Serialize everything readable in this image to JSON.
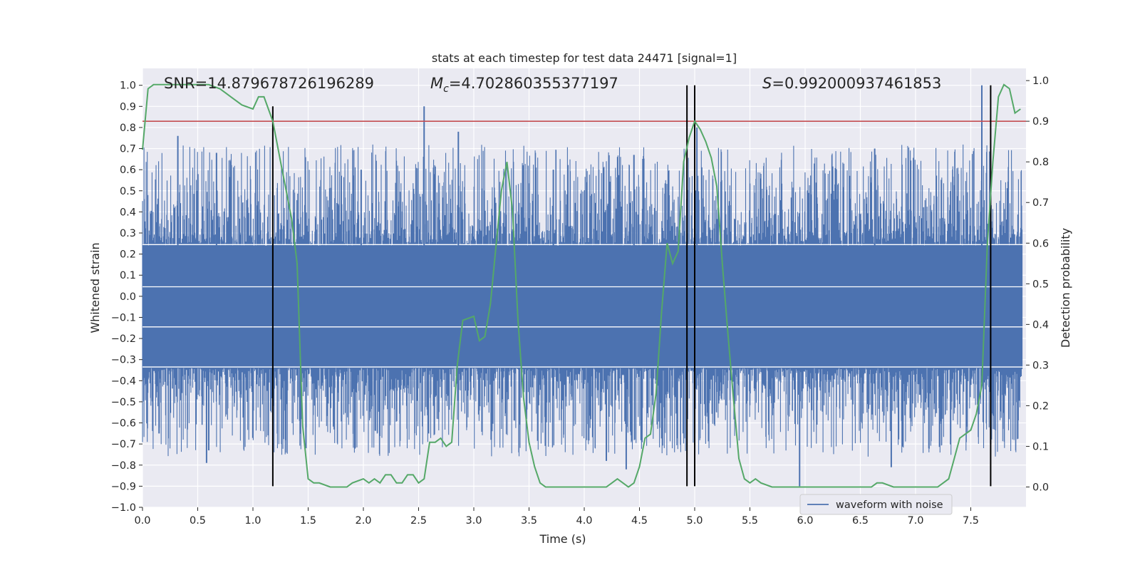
{
  "chart_data": {
    "type": "line",
    "title": "stats at each timestep for test data 24471 [signal=1]",
    "xlabel": "Time (s)",
    "ylabel": "Whitened strain",
    "y2label": "Detection probability",
    "xlim": [
      0.0,
      8.0
    ],
    "ylim": [
      -1.0,
      1.08
    ],
    "y2lim": [
      -0.05,
      1.03
    ],
    "xticks": [
      0.0,
      0.5,
      1.0,
      1.5,
      2.0,
      2.5,
      3.0,
      3.5,
      4.0,
      4.5,
      5.0,
      5.5,
      6.0,
      6.5,
      7.0,
      7.5
    ],
    "xtick_labels": [
      "0.0",
      "0.5",
      "1.0",
      "1.5",
      "2.0",
      "2.5",
      "3.0",
      "3.5",
      "4.0",
      "4.5",
      "5.0",
      "5.5",
      "6.0",
      "6.5",
      "7.0",
      "7.5"
    ],
    "yticks": [
      -1.0,
      -0.9,
      -0.8,
      -0.7,
      -0.6,
      -0.5,
      -0.4,
      -0.3,
      -0.2,
      -0.1,
      0.0,
      0.1,
      0.2,
      0.3,
      0.4,
      0.5,
      0.6,
      0.7,
      0.8,
      0.9,
      1.0
    ],
    "ytick_labels": [
      "−1.0",
      "−0.9",
      "−0.8",
      "−0.7",
      "−0.6",
      "−0.5",
      "−0.4",
      "−0.3",
      "−0.2",
      "−0.1",
      "0.0",
      "0.1",
      "0.2",
      "0.3",
      "0.4",
      "0.5",
      "0.6",
      "0.7",
      "0.8",
      "0.9",
      "1.0"
    ],
    "y2ticks": [
      0.0,
      0.1,
      0.2,
      0.3,
      0.4,
      0.5,
      0.6,
      0.7,
      0.8,
      0.9,
      1.0
    ],
    "y2tick_labels": [
      "0.0",
      "0.1",
      "0.2",
      "0.3",
      "0.4",
      "0.5",
      "0.6",
      "0.7",
      "0.8",
      "0.9",
      "1.0"
    ],
    "annotations": {
      "snr": "SNR=14.879678726196289",
      "mc_symbol": "M",
      "mc_subscript": "c",
      "mc_value": "=4.702860355377197",
      "s_symbol": "S",
      "s_value": "=0.992000937461853"
    },
    "legend": {
      "label": "waveform with noise",
      "loc": "lower-right"
    },
    "threshold_line": {
      "y": 0.9,
      "axis": "y2",
      "color": "#c44e52"
    },
    "vertical_lines": [
      {
        "x": 1.18,
        "ymin": -0.9,
        "ymax": 0.9
      },
      {
        "x": 4.93,
        "ymin": -0.9,
        "ymax": 1.0
      },
      {
        "x": 5.0,
        "ymin": -0.9,
        "ymax": 1.0
      },
      {
        "x": 7.68,
        "ymin": -0.9,
        "ymax": 1.0
      }
    ],
    "waveform": {
      "name": "waveform with noise",
      "color": "#4c72b0",
      "band_max": 0.24,
      "band_min": -0.34,
      "inner_lines": [
        0.245,
        0.045,
        -0.145,
        -0.335
      ],
      "peaks": [
        {
          "x": 0.32,
          "y": 0.76
        },
        {
          "x": 0.67,
          "y": 0.68
        },
        {
          "x": 2.55,
          "y": 0.9
        },
        {
          "x": 2.86,
          "y": 0.78
        },
        {
          "x": 7.6,
          "y": 1.0
        },
        {
          "x": 5.02,
          "y": 0.8
        },
        {
          "x": 4.45,
          "y": 0.67
        },
        {
          "x": 6.63,
          "y": 0.7
        },
        {
          "x": 1.98,
          "y": 0.6
        },
        {
          "x": 3.72,
          "y": 0.6
        }
      ],
      "troughs": [
        {
          "x": 0.58,
          "y": -0.79
        },
        {
          "x": 0.6,
          "y": -0.73
        },
        {
          "x": 1.48,
          "y": -0.72
        },
        {
          "x": 4.2,
          "y": -0.78
        },
        {
          "x": 4.38,
          "y": -0.82
        },
        {
          "x": 5.95,
          "y": -0.9
        },
        {
          "x": 6.78,
          "y": -0.81
        },
        {
          "x": 7.68,
          "y": -0.7
        },
        {
          "x": 0.15,
          "y": -0.65
        },
        {
          "x": 2.59,
          "y": -0.65
        }
      ]
    },
    "probability": {
      "name": "Detection probability",
      "color": "#55a868",
      "x": [
        0.0,
        0.05,
        0.1,
        0.2,
        0.3,
        0.4,
        0.5,
        0.6,
        0.7,
        0.75,
        0.8,
        0.9,
        1.0,
        1.05,
        1.1,
        1.18,
        1.25,
        1.35,
        1.4,
        1.45,
        1.5,
        1.55,
        1.6,
        1.7,
        1.8,
        1.85,
        1.9,
        2.0,
        2.05,
        2.1,
        2.15,
        2.2,
        2.25,
        2.3,
        2.35,
        2.4,
        2.45,
        2.5,
        2.55,
        2.6,
        2.65,
        2.7,
        2.75,
        2.8,
        2.85,
        2.9,
        3.0,
        3.05,
        3.1,
        3.15,
        3.2,
        3.25,
        3.3,
        3.35,
        3.4,
        3.45,
        3.5,
        3.55,
        3.6,
        3.65,
        3.7,
        3.75,
        3.8,
        3.85,
        3.9,
        4.0,
        4.1,
        4.15,
        4.2,
        4.25,
        4.3,
        4.35,
        4.4,
        4.45,
        4.5,
        4.55,
        4.6,
        4.65,
        4.7,
        4.75,
        4.8,
        4.85,
        4.9,
        4.95,
        5.0,
        5.05,
        5.1,
        5.15,
        5.2,
        5.25,
        5.3,
        5.35,
        5.4,
        5.45,
        5.5,
        5.55,
        5.6,
        5.7,
        5.8,
        5.9,
        6.0,
        6.1,
        6.2,
        6.3,
        6.4,
        6.5,
        6.6,
        6.65,
        6.7,
        6.8,
        6.9,
        7.0,
        7.05,
        7.1,
        7.15,
        7.2,
        7.25,
        7.3,
        7.35,
        7.4,
        7.5,
        7.55,
        7.6,
        7.65,
        7.7,
        7.75,
        7.8,
        7.85,
        7.9,
        7.95
      ],
      "y": [
        0.83,
        0.98,
        0.99,
        0.99,
        0.99,
        0.99,
        0.99,
        0.99,
        0.98,
        0.97,
        0.96,
        0.94,
        0.93,
        0.96,
        0.96,
        0.9,
        0.8,
        0.66,
        0.55,
        0.15,
        0.02,
        0.01,
        0.01,
        0.0,
        0.0,
        0.0,
        0.01,
        0.02,
        0.01,
        0.02,
        0.01,
        0.03,
        0.03,
        0.01,
        0.01,
        0.03,
        0.03,
        0.01,
        0.02,
        0.11,
        0.11,
        0.12,
        0.1,
        0.11,
        0.3,
        0.41,
        0.42,
        0.36,
        0.37,
        0.45,
        0.59,
        0.73,
        0.8,
        0.68,
        0.41,
        0.22,
        0.11,
        0.05,
        0.01,
        0.0,
        0.0,
        0.0,
        0.0,
        0.0,
        0.0,
        0.0,
        0.0,
        0.0,
        0.0,
        0.01,
        0.02,
        0.01,
        0.0,
        0.01,
        0.05,
        0.12,
        0.13,
        0.23,
        0.43,
        0.6,
        0.55,
        0.58,
        0.8,
        0.86,
        0.9,
        0.88,
        0.85,
        0.81,
        0.74,
        0.55,
        0.38,
        0.22,
        0.07,
        0.02,
        0.01,
        0.02,
        0.01,
        0.0,
        0.0,
        0.0,
        0.0,
        0.0,
        0.0,
        0.0,
        0.0,
        0.0,
        0.0,
        0.01,
        0.01,
        0.0,
        0.0,
        0.0,
        0.0,
        0.0,
        0.0,
        0.0,
        0.01,
        0.02,
        0.07,
        0.12,
        0.14,
        0.18,
        0.25,
        0.6,
        0.8,
        0.96,
        0.99,
        0.98,
        0.92,
        0.93
      ]
    },
    "colors": {
      "axes_bg": "#eaeaf2",
      "grid": "#ffffff",
      "text": "#262626",
      "vline": "#000000",
      "legend_bg": "#eaeaf2",
      "legend_border": "#cccccc"
    }
  }
}
